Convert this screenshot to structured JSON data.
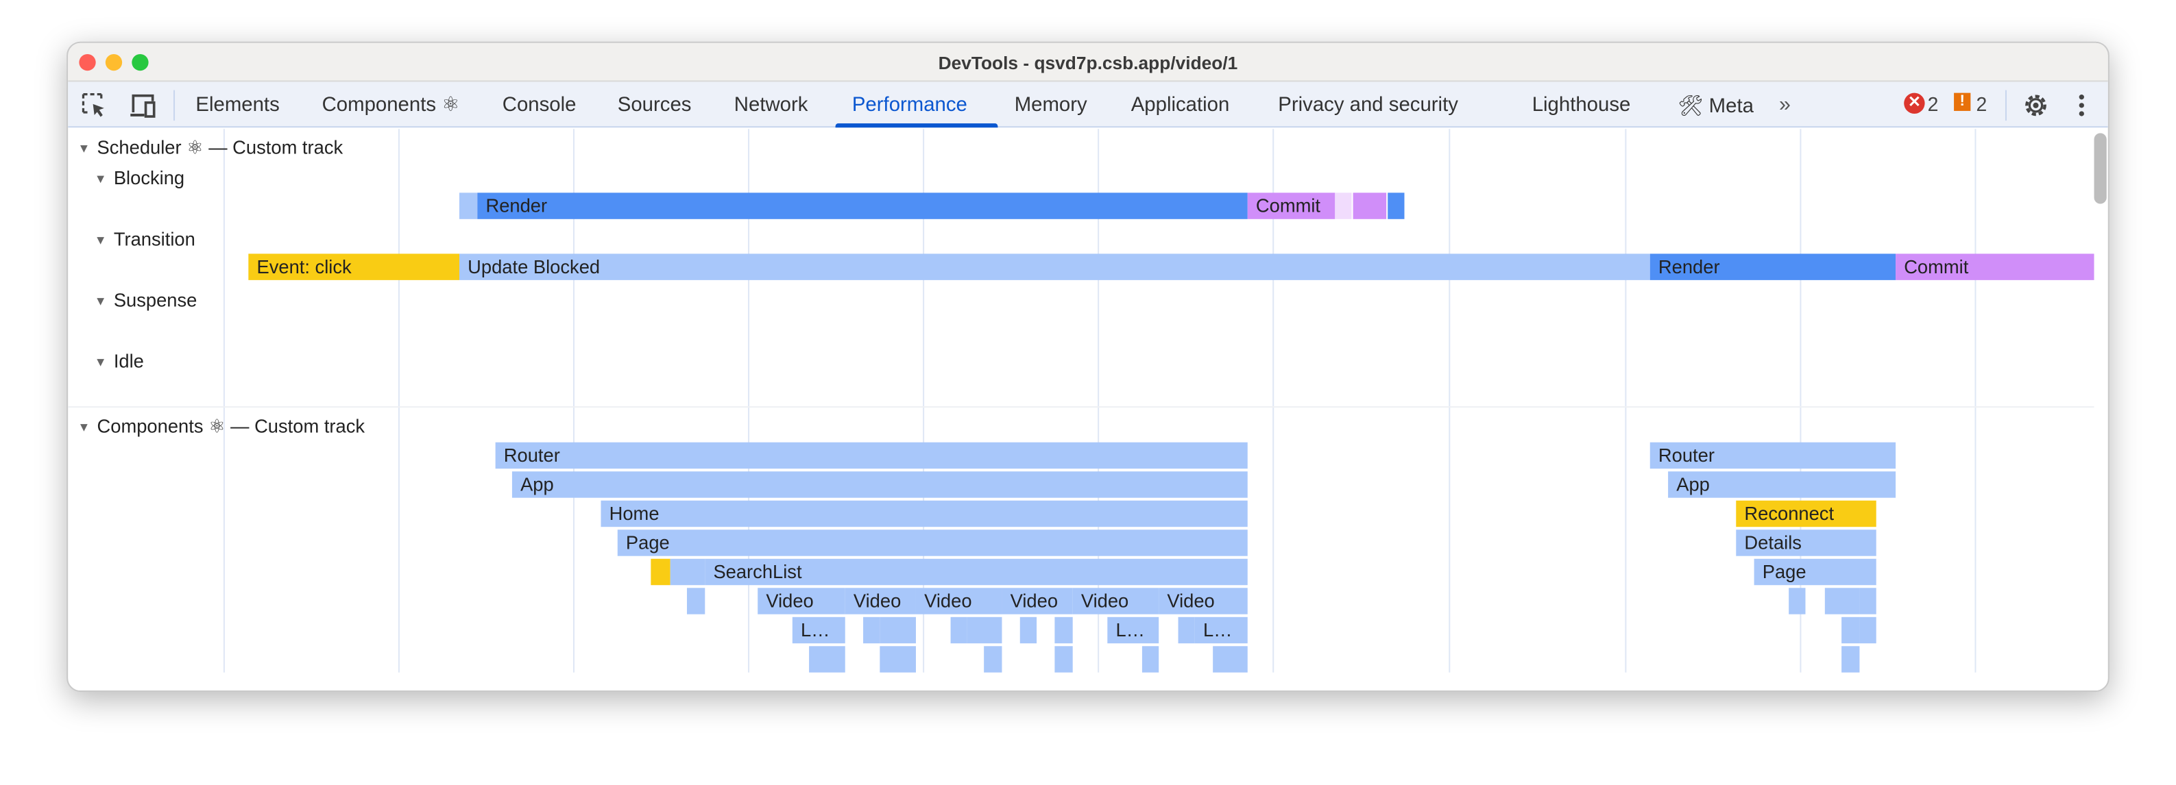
{
  "window": {
    "title": "DevTools - qsvd7p.csb.app/video/1"
  },
  "toolbar": {
    "tabs": [
      {
        "label": "Elements"
      },
      {
        "label": "Components ⚛"
      },
      {
        "label": "Console"
      },
      {
        "label": "Sources"
      },
      {
        "label": "Network"
      },
      {
        "label": "Performance",
        "active": true
      },
      {
        "label": "Memory"
      },
      {
        "label": "Application"
      },
      {
        "label": "Privacy and security"
      },
      {
        "label": "Lighthouse"
      },
      {
        "label": "🛠 Meta"
      }
    ],
    "more_icon": "chevron-double-right-icon",
    "more_label": "»",
    "errors_count": "2",
    "warnings_count": "2",
    "icons": [
      "inspect-element-icon",
      "device-toolbar-icon",
      "error-icon",
      "warning-icon",
      "gear-icon",
      "more-vertical-icon"
    ]
  },
  "tracks": {
    "scheduler": {
      "title": "Scheduler ⚛ — Custom track",
      "lanes": [
        "Blocking",
        "Transition",
        "Suspense",
        "Idle"
      ]
    },
    "components": {
      "title": "Components ⚛ — Custom track"
    }
  },
  "bars": {
    "render": "Render",
    "commit": "Commit",
    "event_click": "Event: click",
    "update_blocked": "Update Blocked",
    "router": "Router",
    "app": "App",
    "home": "Home",
    "page": "Page",
    "searchlist": "SearchList",
    "video": "Video",
    "l_trunc": "L…",
    "reconnect": "Reconnect",
    "details": "Details"
  },
  "colors": {
    "light_blue": "#a8c7fa",
    "blue": "#4f8ff5",
    "purple": "#d08ef9",
    "lavender": "#f1dcfd",
    "yellow": "#f9cc14",
    "accent": "#0b57d0",
    "error": "#dc362e",
    "warning": "#e8710a"
  }
}
